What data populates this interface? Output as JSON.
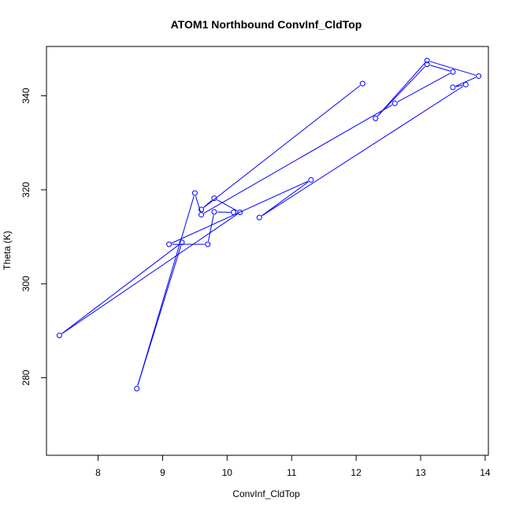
{
  "chart_data": {
    "type": "line",
    "title": "ATOM1 Northbound ConvInf_CldTop",
    "xlabel": "ConvInf_CldTop",
    "ylabel": "Theta (K)",
    "xlim": [
      7.2,
      14.05
    ],
    "ylim": [
      263.5,
      350.5
    ],
    "x_ticks": [
      8,
      9,
      10,
      11,
      12,
      13,
      14
    ],
    "y_ticks": [
      280,
      300,
      320,
      340
    ],
    "grid": false,
    "series": [
      {
        "color": "#0000ff",
        "marker": "open-circle",
        "points": [
          {
            "x": 12.1,
            "y": 342.6
          },
          {
            "x": 9.6,
            "y": 315.8
          },
          {
            "x": 9.8,
            "y": 318.2
          },
          {
            "x": 10.2,
            "y": 315.2
          },
          {
            "x": 7.4,
            "y": 289.0
          },
          {
            "x": 9.3,
            "y": 308.8
          },
          {
            "x": 8.6,
            "y": 277.7
          },
          {
            "x": 9.5,
            "y": 319.3
          },
          {
            "x": 9.6,
            "y": 314.7
          },
          {
            "x": 12.6,
            "y": 338.4
          },
          {
            "x": 13.5,
            "y": 345.1
          },
          {
            "x": 13.1,
            "y": 346.7
          },
          {
            "x": 12.3,
            "y": 335.2
          },
          {
            "x": 13.1,
            "y": 347.5
          },
          {
            "x": 13.9,
            "y": 344.2
          },
          {
            "x": 13.5,
            "y": 341.8
          },
          {
            "x": 13.7,
            "y": 342.4
          },
          {
            "x": 10.5,
            "y": 314.1
          },
          {
            "x": 11.3,
            "y": 322.1
          },
          {
            "x": 9.1,
            "y": 308.4
          },
          {
            "x": 9.7,
            "y": 308.4
          },
          {
            "x": 9.8,
            "y": 315.3
          },
          {
            "x": 10.1,
            "y": 315.2
          }
        ]
      }
    ]
  }
}
